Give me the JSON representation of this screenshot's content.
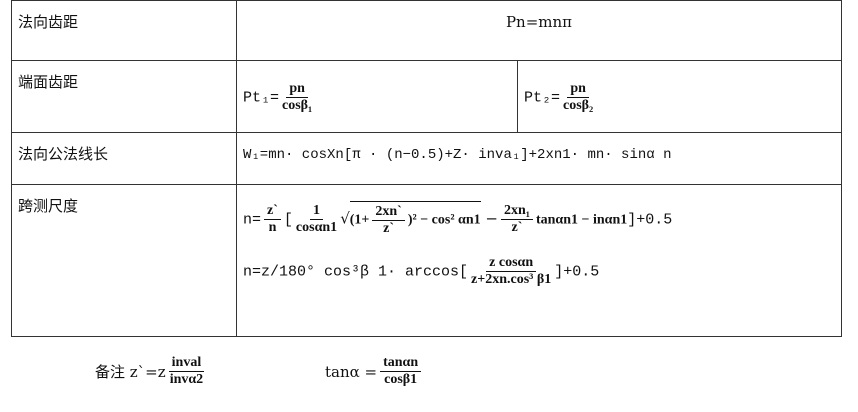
{
  "rows": [
    {
      "label": "法向齿距",
      "formula": "Pn=mnπ"
    },
    {
      "label": "端面齿距",
      "formula1": {
        "lhs": "Pt₁=",
        "num": "pn",
        "den": "cosβ₁"
      },
      "formula2": {
        "lhs": "Pt₂=",
        "num": "pn",
        "den": "cosβ₂"
      }
    },
    {
      "label": "法向公法线长",
      "formula": "W₁=mn· cosXn[π · (n−0.5)+Z· inva₁]+2xn1· mn· sinα n"
    },
    {
      "label": "跨测尺度",
      "formula1": {
        "lhs": "n=",
        "f1num": "z`",
        "f1den": "n",
        "open": "[",
        "f2num": "1",
        "f2den": "cosαn1",
        "sqrt_a": "(1+",
        "f3num": "2xn`",
        "f3den": "z`",
        "sqrt_b": ")² − cos² αn1",
        "minus": "−",
        "f4num": "2xn₁",
        "f4den": "z`",
        "tail": "tanαn1 − inαn1",
        "close": "]+0.5"
      },
      "formula2": {
        "lhs": "n=z/180° cos³β 1· arccos[",
        "num": "z cosαn",
        "den": "z+2xn.cos³ β1",
        "close": "]+0.5"
      }
    }
  ],
  "notes": [
    {
      "prefix": "备注 z`=z",
      "num": "inval",
      "den": "invα2"
    },
    {
      "prefix": "tanα =",
      "num": "tanαn",
      "den": "cosβ1"
    }
  ]
}
